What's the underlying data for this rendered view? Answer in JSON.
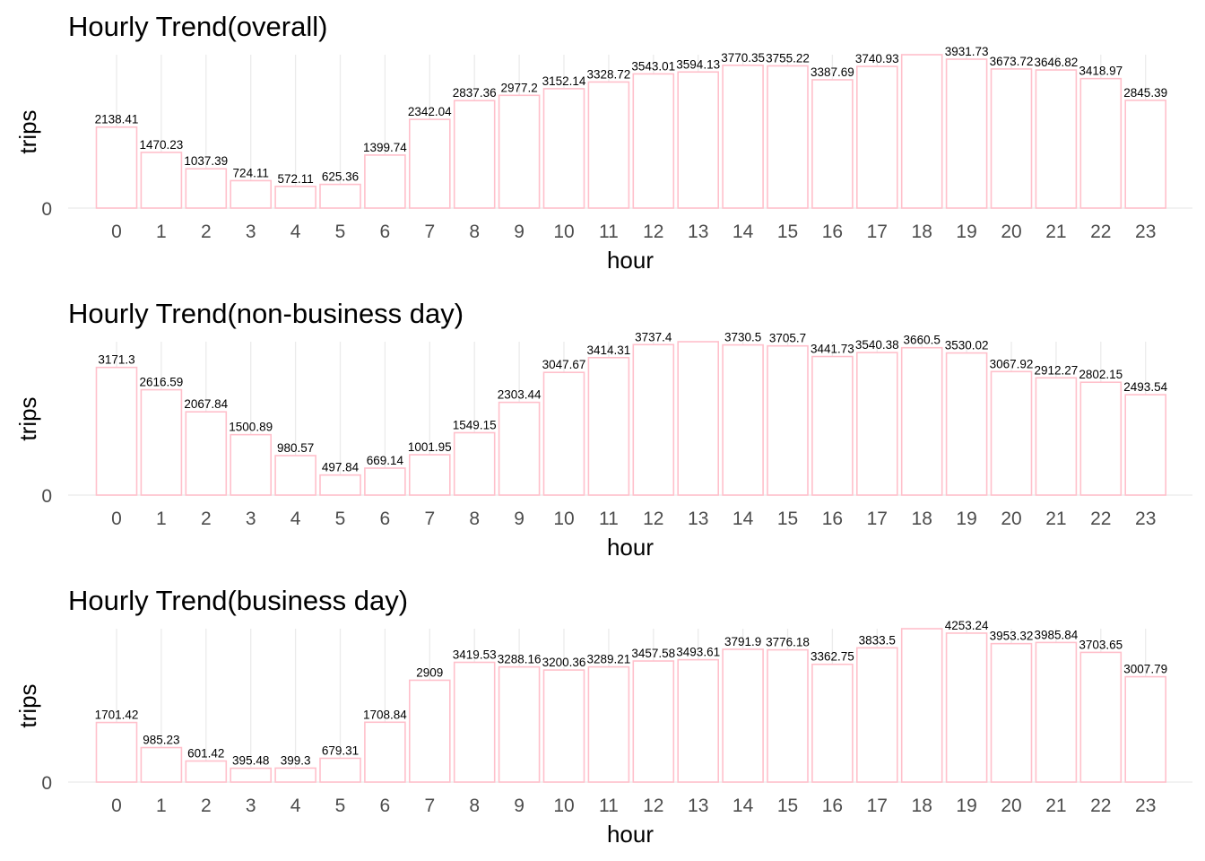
{
  "chart_data": [
    {
      "type": "bar",
      "title": "Hourly Trend(overall)",
      "xlabel": "hour",
      "ylabel": "trips",
      "yticks": [
        "0"
      ],
      "categories": [
        "0",
        "1",
        "2",
        "3",
        "4",
        "5",
        "6",
        "7",
        "8",
        "9",
        "10",
        "11",
        "12",
        "13",
        "14",
        "15",
        "16",
        "17",
        "18",
        "19",
        "20",
        "21",
        "22",
        "23"
      ],
      "values": [
        2138.41,
        1470.23,
        1037.39,
        724.11,
        572.11,
        625.36,
        1399.74,
        2342.04,
        2837.36,
        2977.2,
        3152.14,
        3328.72,
        3543.01,
        3594.13,
        3770.35,
        3755.22,
        3387.69,
        3740.93,
        4050,
        3931.73,
        3673.72,
        3646.82,
        3418.97,
        2845.39
      ],
      "labels": [
        "2138.41",
        "1470.23",
        "1037.39",
        "724.11",
        "572.11",
        "625.36",
        "1399.74",
        "2342.04",
        "2837.36",
        "2977.2",
        "3152.14",
        "3328.72",
        "3543.01",
        "3594.13",
        "3770.35",
        "3755.22",
        "3387.69",
        "3740.93",
        "",
        "3931.73",
        "3673.72",
        "3646.82",
        "3418.97",
        "2845.39"
      ],
      "ylim": [
        0,
        4050
      ],
      "bar_outline_color": "#ffc0cb",
      "bar_fill_color": "#ffffff",
      "grid": true
    },
    {
      "type": "bar",
      "title": "Hourly Trend(non-business day)",
      "xlabel": "hour",
      "ylabel": "trips",
      "yticks": [
        "0"
      ],
      "categories": [
        "0",
        "1",
        "2",
        "3",
        "4",
        "5",
        "6",
        "7",
        "8",
        "9",
        "10",
        "11",
        "12",
        "13",
        "14",
        "15",
        "16",
        "17",
        "18",
        "19",
        "20",
        "21",
        "22",
        "23"
      ],
      "values": [
        3171.3,
        2616.59,
        2067.84,
        1500.89,
        980.57,
        497.84,
        669.14,
        1001.95,
        1549.15,
        2303.44,
        3047.67,
        3414.31,
        3737.4,
        3810,
        3730.5,
        3705.7,
        3441.73,
        3540.38,
        3660.5,
        3530.02,
        3067.92,
        2912.27,
        2802.15,
        2493.54
      ],
      "labels": [
        "3171.3",
        "2616.59",
        "2067.84",
        "1500.89",
        "980.57",
        "497.84",
        "669.14",
        "1001.95",
        "1549.15",
        "2303.44",
        "3047.67",
        "3414.31",
        "3737.4",
        "",
        "3730.5",
        "3705.7",
        "3441.73",
        "3540.38",
        "3660.5",
        "3530.02",
        "3067.92",
        "2912.27",
        "2802.15",
        "2493.54"
      ],
      "ylim": [
        0,
        3810
      ],
      "bar_outline_color": "#ffc0cb",
      "bar_fill_color": "#ffffff",
      "grid": true
    },
    {
      "type": "bar",
      "title": "Hourly Trend(business day)",
      "xlabel": "hour",
      "ylabel": "trips",
      "yticks": [
        "0"
      ],
      "categories": [
        "0",
        "1",
        "2",
        "3",
        "4",
        "5",
        "6",
        "7",
        "8",
        "9",
        "10",
        "11",
        "12",
        "13",
        "14",
        "15",
        "16",
        "17",
        "18",
        "19",
        "20",
        "21",
        "22",
        "23"
      ],
      "values": [
        1701.42,
        985.23,
        601.42,
        395.48,
        399.3,
        679.31,
        1708.84,
        2909,
        3419.53,
        3288.16,
        3200.36,
        3289.21,
        3457.58,
        3493.61,
        3791.9,
        3776.18,
        3362.75,
        3833.5,
        4380,
        4253.24,
        3953.32,
        3985.84,
        3703.65,
        3007.79
      ],
      "labels": [
        "1701.42",
        "985.23",
        "601.42",
        "395.48",
        "399.3",
        "679.31",
        "1708.84",
        "2909",
        "3419.53",
        "3288.16",
        "3200.36",
        "3289.21",
        "3457.58",
        "3493.61",
        "3791.9",
        "3776.18",
        "3362.75",
        "3833.5",
        "",
        "4253.24",
        "3953.32",
        "3985.84",
        "3703.65",
        "3007.79"
      ],
      "ylim": [
        0,
        4380
      ],
      "bar_outline_color": "#ffc0cb",
      "bar_fill_color": "#ffffff",
      "grid": true
    }
  ]
}
